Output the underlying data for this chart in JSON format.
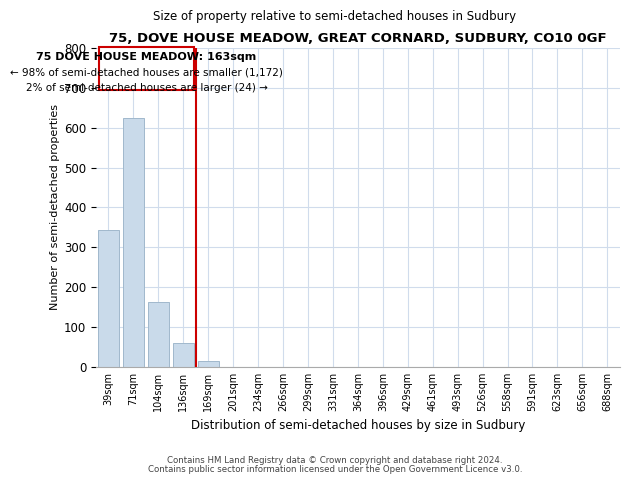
{
  "title": "75, DOVE HOUSE MEADOW, GREAT CORNARD, SUDBURY, CO10 0GF",
  "subtitle": "Size of property relative to semi-detached houses in Sudbury",
  "xlabel": "Distribution of semi-detached houses by size in Sudbury",
  "ylabel": "Number of semi-detached properties",
  "bar_labels": [
    "39sqm",
    "71sqm",
    "104sqm",
    "136sqm",
    "169sqm",
    "201sqm",
    "234sqm",
    "266sqm",
    "299sqm",
    "331sqm",
    "364sqm",
    "396sqm",
    "429sqm",
    "461sqm",
    "493sqm",
    "526sqm",
    "558sqm",
    "591sqm",
    "623sqm",
    "656sqm",
    "688sqm"
  ],
  "bar_values": [
    343,
    625,
    163,
    60,
    15,
    0,
    0,
    0,
    0,
    0,
    0,
    0,
    0,
    0,
    0,
    0,
    0,
    0,
    0,
    0,
    0
  ],
  "bar_color": "#c9daea",
  "bar_edge_color": "#a0b8cc",
  "vline_color": "#cc0000",
  "ylim": [
    0,
    800
  ],
  "yticks": [
    0,
    100,
    200,
    300,
    400,
    500,
    600,
    700,
    800
  ],
  "annotation_title": "75 DOVE HOUSE MEADOW: 163sqm",
  "annotation_line1": "← 98% of semi-detached houses are smaller (1,172)",
  "annotation_line2": "2% of semi-detached houses are larger (24) →",
  "footer_line1": "Contains HM Land Registry data © Crown copyright and database right 2024.",
  "footer_line2": "Contains public sector information licensed under the Open Government Licence v3.0.",
  "background_color": "#ffffff",
  "grid_color": "#d0dcec"
}
